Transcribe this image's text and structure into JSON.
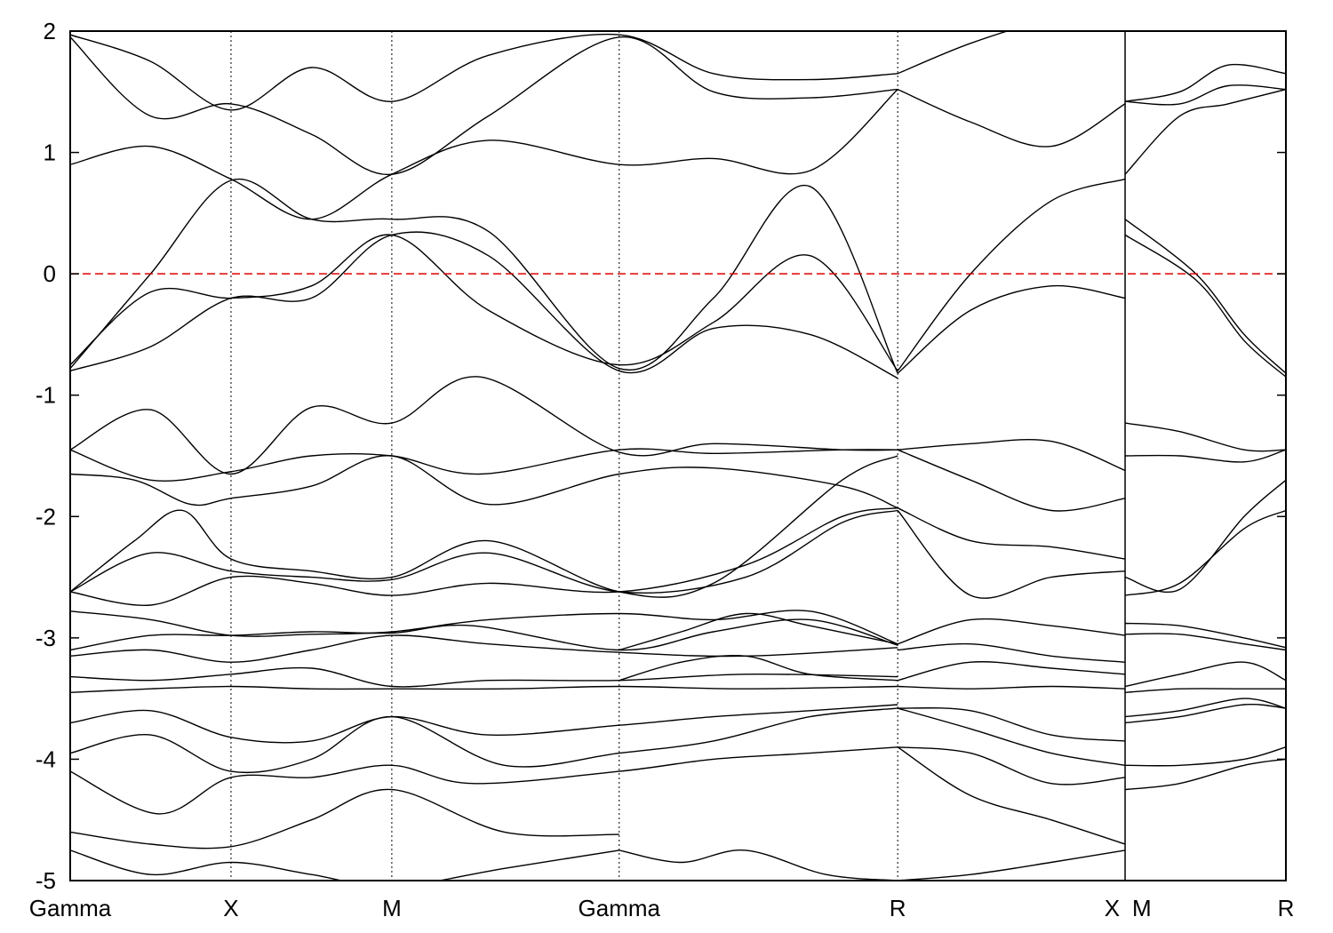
{
  "chart_data": {
    "type": "line",
    "ylim": [
      -5,
      2
    ],
    "y_ticks": [
      2,
      1,
      0,
      -1,
      -2,
      -3,
      -4,
      -5
    ],
    "x_ticks": [
      {
        "label": "Gamma",
        "k": 0.0
      },
      {
        "label": "X",
        "k": 1.0
      },
      {
        "label": "M",
        "k": 2.0
      },
      {
        "label": "Gamma",
        "k": 3.414
      },
      {
        "label": "R",
        "k": 5.146
      },
      {
        "label": "X",
        "k": 6.56
      },
      {
        "label": "M",
        "k": 6.56
      },
      {
        "label": "R",
        "k": 7.56
      }
    ],
    "path_break_k": 6.56,
    "fermi_level": 0,
    "grid": false,
    "series": [
      {
        "id": "b01",
        "k": [
          0,
          0.5,
          1.0,
          1.5,
          2.0,
          2.7,
          3.414
        ],
        "y": [
          -4.75,
          -4.95,
          -4.85,
          -4.95,
          -5.05,
          -4.9,
          -4.75
        ]
      },
      {
        "id": "b02",
        "k": [
          0,
          0.5,
          1.0,
          1.5,
          2.0,
          2.7,
          3.414
        ],
        "y": [
          -4.6,
          -4.7,
          -4.72,
          -4.5,
          -4.25,
          -4.6,
          -4.62
        ]
      },
      {
        "id": "b03",
        "k": [
          0,
          0.55,
          1.0,
          1.5,
          2.0,
          2.5,
          3.414,
          4.0,
          4.6,
          5.146
        ],
        "y": [
          -4.1,
          -4.45,
          -4.15,
          -4.15,
          -4.05,
          -4.2,
          -4.1,
          -4.0,
          -3.95,
          -3.9
        ]
      },
      {
        "id": "b04",
        "k": [
          0,
          0.5,
          1.0,
          1.5,
          2.0,
          2.7,
          3.414,
          4.0,
          4.6,
          5.146
        ],
        "y": [
          -3.95,
          -3.8,
          -4.1,
          -4.0,
          -3.65,
          -4.05,
          -3.95,
          -3.85,
          -3.65,
          -3.58
        ]
      },
      {
        "id": "b05",
        "k": [
          0,
          0.5,
          1.0,
          1.5,
          2.0,
          2.6,
          3.414,
          4.0,
          4.6,
          5.146
        ],
        "y": [
          -3.7,
          -3.6,
          -3.82,
          -3.85,
          -3.65,
          -3.8,
          -3.72,
          -3.65,
          -3.6,
          -3.55
        ]
      },
      {
        "id": "b06",
        "k": [
          0,
          0.5,
          1.0,
          1.5,
          2.0,
          2.7,
          3.414,
          4.2,
          5.146
        ],
        "y": [
          -3.45,
          -3.42,
          -3.4,
          -3.42,
          -3.42,
          -3.42,
          -3.4,
          -3.42,
          -3.4
        ]
      },
      {
        "id": "b07",
        "k": [
          0,
          0.5,
          1.0,
          1.5,
          2.0,
          2.6,
          3.414,
          4.2,
          5.146
        ],
        "y": [
          -3.32,
          -3.35,
          -3.3,
          -3.25,
          -3.4,
          -3.35,
          -3.35,
          -3.3,
          -3.32
        ]
      },
      {
        "id": "b08",
        "k": [
          0,
          0.5,
          1.0,
          1.5,
          2.0,
          2.6,
          3.414,
          4.2,
          5.146
        ],
        "y": [
          -3.15,
          -3.1,
          -3.2,
          -3.1,
          -2.98,
          -3.05,
          -3.12,
          -3.15,
          -3.08
        ]
      },
      {
        "id": "b09",
        "k": [
          0,
          0.5,
          1.0,
          1.5,
          2.0,
          2.5,
          3.414,
          4.0,
          4.6,
          5.146
        ],
        "y": [
          -3.1,
          -2.98,
          -2.98,
          -2.95,
          -2.96,
          -2.9,
          -3.1,
          -2.95,
          -2.85,
          -3.06
        ]
      },
      {
        "id": "b10",
        "k": [
          0,
          0.5,
          1.0,
          1.5,
          2.0,
          2.6,
          3.414,
          4.0,
          4.6,
          5.146
        ],
        "y": [
          -2.78,
          -2.85,
          -2.98,
          -2.97,
          -2.95,
          -2.85,
          -2.8,
          -2.85,
          -2.78,
          -3.05
        ]
      },
      {
        "id": "b11",
        "k": [
          0,
          0.5,
          1.0,
          1.5,
          2.0,
          2.6,
          3.414,
          4.2,
          4.8,
          5.146
        ],
        "y": [
          -2.62,
          -2.73,
          -2.5,
          -2.55,
          -2.65,
          -2.55,
          -2.62,
          -2.4,
          -2.0,
          -1.93
        ]
      },
      {
        "id": "b12",
        "k": [
          0,
          0.5,
          1.0,
          1.5,
          2.0,
          2.6,
          3.414,
          4.2,
          4.8,
          5.146
        ],
        "y": [
          -2.62,
          -2.3,
          -2.45,
          -2.5,
          -2.52,
          -2.3,
          -2.62,
          -2.5,
          -2.05,
          -1.95
        ]
      },
      {
        "id": "b13",
        "k": [
          0,
          0.4,
          0.7,
          1.0,
          1.5,
          2.0,
          2.6,
          3.414,
          4.0,
          4.8,
          5.146
        ],
        "y": [
          -2.62,
          -2.2,
          -1.95,
          -2.35,
          -2.45,
          -2.5,
          -2.2,
          -2.62,
          -2.55,
          -1.7,
          -1.5
        ]
      },
      {
        "id": "b14",
        "k": [
          0,
          0.4,
          0.75,
          1.0,
          1.5,
          2.0,
          2.6,
          3.414,
          4.0,
          4.8,
          5.146
        ],
        "y": [
          -1.65,
          -1.7,
          -1.9,
          -1.85,
          -1.75,
          -1.5,
          -1.9,
          -1.65,
          -1.6,
          -1.75,
          -1.93
        ]
      },
      {
        "id": "b15",
        "k": [
          0,
          0.5,
          1.0,
          1.5,
          2.0,
          2.55,
          3.414,
          4.0,
          4.8,
          5.146
        ],
        "y": [
          -1.45,
          -1.7,
          -1.63,
          -1.5,
          -1.5,
          -1.65,
          -1.45,
          -1.48,
          -1.45,
          -1.45
        ]
      },
      {
        "id": "b16",
        "k": [
          0,
          0.5,
          1.0,
          1.5,
          2.0,
          2.55,
          3.414,
          4.0,
          4.8,
          5.146
        ],
        "y": [
          -1.45,
          -1.12,
          -1.65,
          -1.1,
          -1.23,
          -0.85,
          -1.47,
          -1.4,
          -1.45,
          -1.45
        ]
      },
      {
        "id": "b17",
        "k": [
          0,
          0.5,
          1.0,
          1.5,
          2.0,
          2.6,
          3.414,
          4.0,
          4.6,
          5.146
        ],
        "y": [
          -0.8,
          -0.6,
          -0.2,
          -0.2,
          0.32,
          0.15,
          -0.8,
          -0.45,
          -0.5,
          -0.86
        ]
      },
      {
        "id": "b18",
        "k": [
          0,
          0.5,
          1.0,
          1.5,
          2.0,
          2.6,
          3.414,
          4.0,
          4.6,
          5.146
        ],
        "y": [
          -0.75,
          -0.15,
          -0.2,
          -0.1,
          0.32,
          -0.3,
          -0.75,
          -0.4,
          0.15,
          -0.8
        ]
      },
      {
        "id": "b19",
        "k": [
          0,
          0.5,
          1.0,
          1.5,
          2.0,
          2.6,
          3.414,
          4.0,
          4.6,
          5.146
        ],
        "y": [
          -0.78,
          0.0,
          0.77,
          0.45,
          0.45,
          0.35,
          -0.78,
          -0.2,
          0.72,
          -0.82
        ]
      },
      {
        "id": "b20",
        "k": [
          0,
          0.5,
          1.0,
          1.5,
          2.0,
          2.6,
          3.414,
          4.0,
          4.6,
          5.146
        ],
        "y": [
          0.9,
          1.05,
          0.78,
          0.45,
          0.82,
          1.1,
          0.9,
          0.95,
          0.85,
          1.52
        ]
      },
      {
        "id": "b21",
        "k": [
          0,
          0.5,
          1.0,
          1.5,
          2.0,
          2.6,
          3.414,
          4.0,
          4.6,
          5.146
        ],
        "y": [
          1.95,
          1.3,
          1.4,
          1.15,
          0.82,
          1.3,
          1.95,
          1.5,
          1.45,
          1.52
        ]
      },
      {
        "id": "b22",
        "k": [
          0,
          0.5,
          1.0,
          1.5,
          2.0,
          2.6,
          3.414,
          4.0,
          4.6,
          5.146
        ],
        "y": [
          1.97,
          1.75,
          1.35,
          1.7,
          1.42,
          1.8,
          1.97,
          1.65,
          1.6,
          1.65
        ]
      },
      {
        "id": "b23",
        "k": [
          3.414,
          3.8,
          4.2,
          4.6,
          5.146
        ],
        "y": [
          -3.35,
          -3.2,
          -3.15,
          -3.3,
          -3.35
        ]
      },
      {
        "id": "b24",
        "k": [
          3.414,
          3.8,
          4.2,
          4.6,
          5.146
        ],
        "y": [
          -3.1,
          -2.95,
          -2.8,
          -2.9,
          -3.05
        ]
      },
      {
        "id": "b25",
        "k": [
          3.414,
          3.8,
          4.2,
          4.7,
          5.146
        ],
        "y": [
          -4.75,
          -4.85,
          -4.75,
          -4.95,
          -5.0
        ]
      },
      {
        "id": "b26",
        "k": [
          5.146,
          5.6,
          6.1,
          6.56
        ],
        "y": [
          -0.82,
          -0.3,
          -0.1,
          -0.2
        ]
      },
      {
        "id": "b27",
        "k": [
          5.146,
          5.6,
          6.1,
          6.56
        ],
        "y": [
          -0.8,
          0.0,
          0.6,
          0.78
        ]
      },
      {
        "id": "b28",
        "k": [
          5.146,
          5.6,
          6.1,
          6.56
        ],
        "y": [
          1.52,
          1.25,
          1.05,
          1.4
        ]
      },
      {
        "id": "b29",
        "k": [
          5.146,
          5.6,
          6.1,
          6.56
        ],
        "y": [
          1.65,
          1.9,
          2.1,
          2.2
        ]
      },
      {
        "id": "b30",
        "k": [
          5.146,
          5.6,
          6.1,
          6.56
        ],
        "y": [
          -1.45,
          -1.4,
          -1.38,
          -1.62
        ]
      },
      {
        "id": "b31",
        "k": [
          5.146,
          5.6,
          6.1,
          6.56
        ],
        "y": [
          -1.45,
          -1.7,
          -1.95,
          -1.85
        ]
      },
      {
        "id": "b32",
        "k": [
          5.146,
          5.6,
          6.1,
          6.56
        ],
        "y": [
          -1.93,
          -2.2,
          -2.25,
          -2.35
        ]
      },
      {
        "id": "b33",
        "k": [
          5.146,
          5.6,
          6.1,
          6.56
        ],
        "y": [
          -1.95,
          -2.65,
          -2.5,
          -2.45
        ]
      },
      {
        "id": "b34",
        "k": [
          5.146,
          5.6,
          6.1,
          6.56
        ],
        "y": [
          -3.05,
          -2.85,
          -2.9,
          -2.98
        ]
      },
      {
        "id": "b35",
        "k": [
          5.146,
          5.6,
          6.1,
          6.56
        ],
        "y": [
          -3.1,
          -3.05,
          -3.15,
          -3.2
        ]
      },
      {
        "id": "b36",
        "k": [
          5.146,
          5.6,
          6.1,
          6.56
        ],
        "y": [
          -3.35,
          -3.2,
          -3.25,
          -3.3
        ]
      },
      {
        "id": "b37",
        "k": [
          5.146,
          5.6,
          6.1,
          6.56
        ],
        "y": [
          -3.4,
          -3.42,
          -3.4,
          -3.42
        ]
      },
      {
        "id": "b38",
        "k": [
          5.146,
          5.6,
          6.1,
          6.56
        ],
        "y": [
          -3.58,
          -3.6,
          -3.8,
          -3.85
        ]
      },
      {
        "id": "b39",
        "k": [
          5.146,
          5.6,
          6.1,
          6.56
        ],
        "y": [
          -3.58,
          -3.75,
          -3.95,
          -4.05
        ]
      },
      {
        "id": "b40",
        "k": [
          5.146,
          5.6,
          6.1,
          6.56
        ],
        "y": [
          -3.9,
          -3.95,
          -4.2,
          -4.15
        ]
      },
      {
        "id": "b41",
        "k": [
          5.146,
          5.6,
          6.1,
          6.56
        ],
        "y": [
          -3.9,
          -4.3,
          -4.5,
          -4.7
        ]
      },
      {
        "id": "b42",
        "k": [
          5.146,
          5.6,
          6.1,
          6.56
        ],
        "y": [
          -5.0,
          -4.95,
          -4.85,
          -4.75
        ]
      },
      {
        "id": "b43",
        "k": [
          6.56,
          7.0,
          7.3,
          7.56
        ],
        "y": [
          0.45,
          0.0,
          -0.5,
          -0.82
        ]
      },
      {
        "id": "b44",
        "k": [
          6.56,
          7.0,
          7.3,
          7.56
        ],
        "y": [
          0.32,
          -0.05,
          -0.55,
          -0.85
        ]
      },
      {
        "id": "b45",
        "k": [
          6.56,
          6.9,
          7.2,
          7.56
        ],
        "y": [
          0.82,
          1.3,
          1.4,
          1.52
        ]
      },
      {
        "id": "b46",
        "k": [
          6.56,
          6.9,
          7.2,
          7.56
        ],
        "y": [
          1.42,
          1.4,
          1.55,
          1.52
        ]
      },
      {
        "id": "b47",
        "k": [
          6.56,
          6.9,
          7.2,
          7.56
        ],
        "y": [
          1.42,
          1.5,
          1.72,
          1.65
        ]
      },
      {
        "id": "b48",
        "k": [
          6.56,
          6.9,
          7.3,
          7.56
        ],
        "y": [
          -1.23,
          -1.3,
          -1.45,
          -1.45
        ]
      },
      {
        "id": "b49",
        "k": [
          6.56,
          6.9,
          7.3,
          7.56
        ],
        "y": [
          -1.5,
          -1.5,
          -1.55,
          -1.45
        ]
      },
      {
        "id": "b50",
        "k": [
          6.56,
          6.9,
          7.3,
          7.56
        ],
        "y": [
          -2.5,
          -2.6,
          -2.0,
          -1.7
        ]
      },
      {
        "id": "b51",
        "k": [
          6.56,
          6.9,
          7.3,
          7.56
        ],
        "y": [
          -2.65,
          -2.55,
          -2.1,
          -1.95
        ]
      },
      {
        "id": "b52",
        "k": [
          6.56,
          6.9,
          7.3,
          7.56
        ],
        "y": [
          -2.88,
          -2.9,
          -3.0,
          -3.08
        ]
      },
      {
        "id": "b53",
        "k": [
          6.56,
          6.9,
          7.3,
          7.56
        ],
        "y": [
          -2.97,
          -2.97,
          -3.05,
          -3.1
        ]
      },
      {
        "id": "b54",
        "k": [
          6.56,
          6.9,
          7.3,
          7.56
        ],
        "y": [
          -3.4,
          -3.3,
          -3.2,
          -3.35
        ]
      },
      {
        "id": "b55",
        "k": [
          6.56,
          6.9,
          7.3,
          7.56
        ],
        "y": [
          -3.45,
          -3.42,
          -3.42,
          -3.42
        ]
      },
      {
        "id": "b56",
        "k": [
          6.56,
          6.9,
          7.3,
          7.56
        ],
        "y": [
          -3.65,
          -3.6,
          -3.5,
          -3.58
        ]
      },
      {
        "id": "b57",
        "k": [
          6.56,
          6.9,
          7.3,
          7.56
        ],
        "y": [
          -3.7,
          -3.65,
          -3.55,
          -3.58
        ]
      },
      {
        "id": "b58",
        "k": [
          6.56,
          6.9,
          7.3,
          7.56
        ],
        "y": [
          -4.05,
          -4.05,
          -4.0,
          -3.9
        ]
      },
      {
        "id": "b59",
        "k": [
          6.56,
          6.9,
          7.3,
          7.56
        ],
        "y": [
          -4.25,
          -4.2,
          -4.05,
          -4.0
        ]
      }
    ]
  }
}
